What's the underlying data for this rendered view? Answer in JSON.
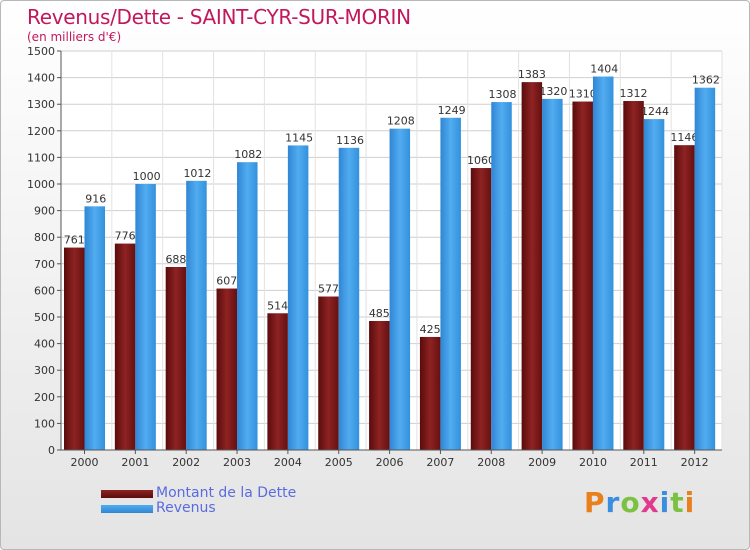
{
  "header": {
    "title": "Revenus/Dette - SAINT-CYR-SUR-MORIN",
    "subtitle": "(en milliers d'€)"
  },
  "chart_data": {
    "type": "bar",
    "categories": [
      "2000",
      "2001",
      "2002",
      "2003",
      "2004",
      "2005",
      "2006",
      "2007",
      "2008",
      "2009",
      "2010",
      "2011",
      "2012"
    ],
    "series": [
      {
        "name": "Montant de la Dette",
        "color": "#7a1515",
        "values": [
          761,
          776,
          688,
          607,
          514,
          577,
          485,
          425,
          1060,
          1383,
          1310,
          1312,
          1146
        ]
      },
      {
        "name": "Revenus",
        "color": "#3d9be6",
        "values": [
          916,
          1000,
          1012,
          1082,
          1145,
          1136,
          1208,
          1249,
          1308,
          1320,
          1404,
          1244,
          1362
        ]
      }
    ],
    "ylim": [
      0,
      1500
    ],
    "yticks": [
      0,
      100,
      200,
      300,
      400,
      500,
      600,
      700,
      800,
      900,
      1000,
      1100,
      1200,
      1300,
      1400,
      1500
    ],
    "grid": true,
    "legend_position": "bottom-left"
  },
  "logo": {
    "letters": [
      {
        "ch": "P",
        "color": "#e8811d"
      },
      {
        "ch": "r",
        "color": "#3b8de0"
      },
      {
        "ch": "o",
        "color": "#7cc242"
      },
      {
        "ch": "x",
        "color": "#e03a8c"
      },
      {
        "ch": "i",
        "color": "#3b8de0"
      },
      {
        "ch": "t",
        "color": "#7cc242"
      },
      {
        "ch": "i",
        "color": "#e8811d"
      }
    ]
  }
}
